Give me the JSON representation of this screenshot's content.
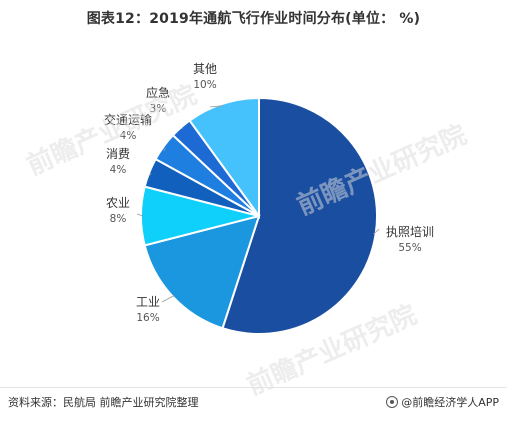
{
  "title": "图表12：2019年通航飞行作业时间分布(单位： %)",
  "source": "资料来源：民航局 前瞻产业研究院整理",
  "brand": "@前瞻经济学人APP",
  "watermark": "前瞻产业研究院",
  "colors": {
    "执照培训": "#1a4ea1",
    "工业": "#1a97df",
    "农业": "#0fd0fb",
    "消费": "#1160bd",
    "交通运输": "#1f7fe0",
    "应急": "#1d6ad4",
    "其他": "#45c2fb"
  },
  "chart_data": {
    "type": "pie",
    "title": "图表12：2019年通航飞行作业时间分布(单位： %)",
    "unit": "%",
    "start_angle_deg": 0,
    "direction": "clockwise",
    "labels": [
      "执照培训",
      "工业",
      "农业",
      "消费",
      "交通运输",
      "应急",
      "其他"
    ],
    "values": [
      55,
      16,
      8,
      4,
      4,
      3,
      10
    ],
    "value_labels": [
      "55%",
      "16%",
      "8%",
      "4%",
      "4%",
      "3%",
      "10%"
    ]
  }
}
